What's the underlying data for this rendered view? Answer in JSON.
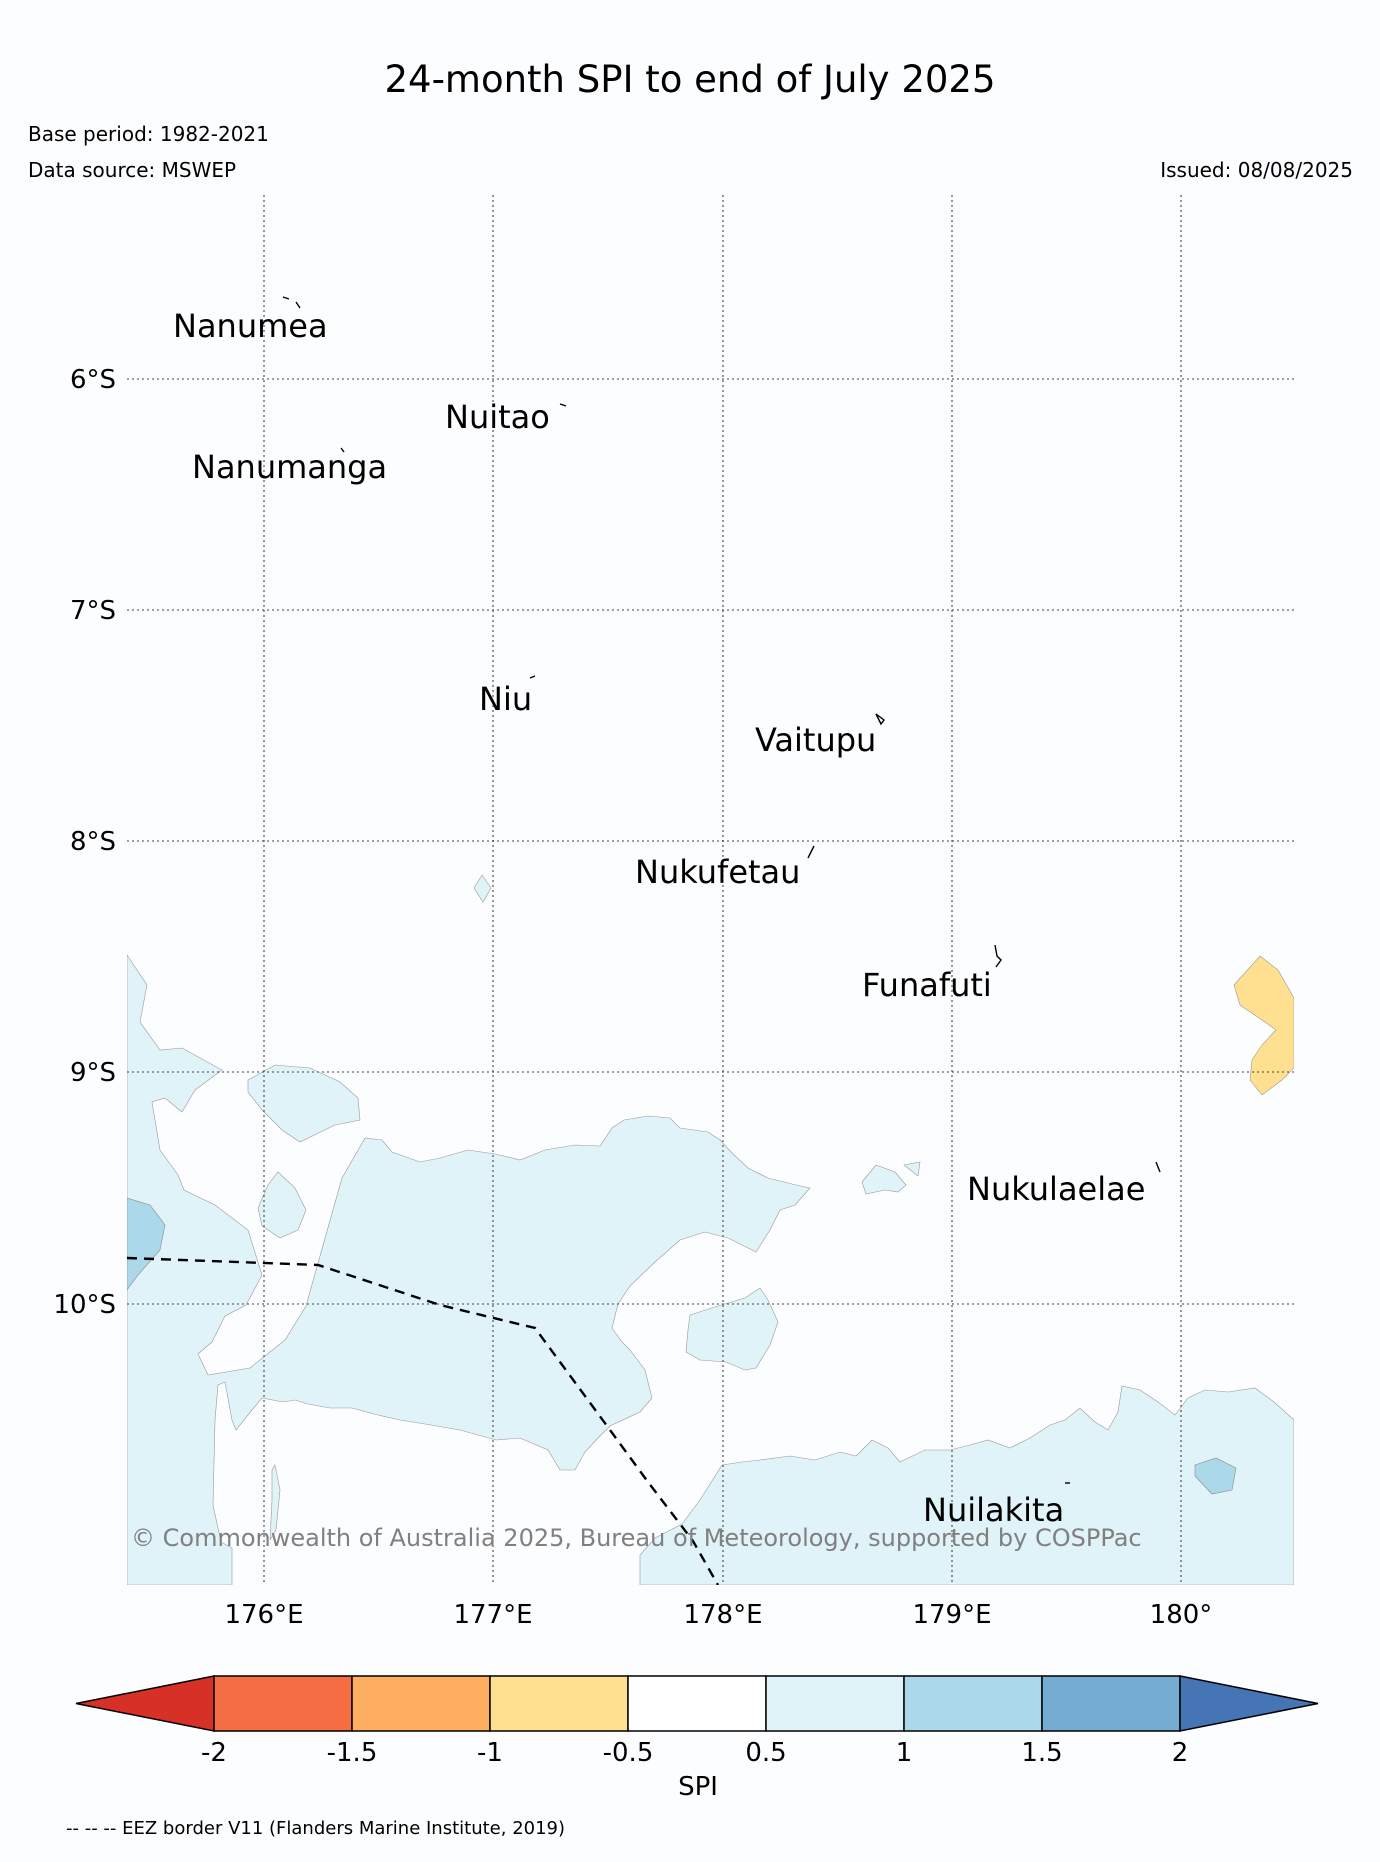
{
  "header": {
    "title": "24-month SPI to end of July 2025",
    "base_period": "Base period: 1982-2021",
    "data_source": "Data source: MSWEP",
    "issued": "Issued: 08/08/2025"
  },
  "map": {
    "lon_ticks": [
      "176°E",
      "177°E",
      "178°E",
      "179°E",
      "180°"
    ],
    "lat_ticks": [
      "6°S",
      "7°S",
      "8°S",
      "9°S",
      "10°S"
    ],
    "islands": [
      "Nanumea",
      "Nuitao",
      "Nanumanga",
      "Niu",
      "Vaitupu",
      "Nukufetau",
      "Funafuti",
      "Nukulaelae",
      "Nuilakita"
    ],
    "copyright": "© Commonwealth of Australia 2025, Bureau of Meteorology, supported by COSPPac"
  },
  "colorbar": {
    "label": "SPI",
    "ticks": [
      "-2",
      "-1.5",
      "-1",
      "-0.5",
      "0.5",
      "1",
      "1.5",
      "2"
    ],
    "colors": [
      "#d73027",
      "#f46d43",
      "#fdae61",
      "#fee090",
      "#ffffff",
      "#e0f3f8",
      "#abd9e9",
      "#74add1",
      "#4575b4"
    ]
  },
  "footer": {
    "eez_note": "-- -- -- EEZ border V11 (Flanders Marine Institute, 2019)"
  }
}
